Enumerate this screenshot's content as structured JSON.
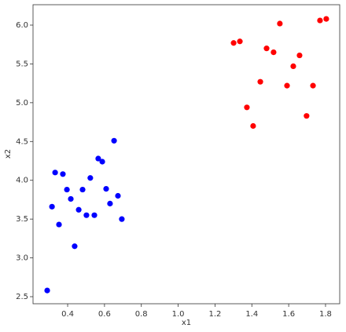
{
  "chart_data": {
    "type": "scatter",
    "x_label": "x1",
    "y_label": "x2",
    "series": [
      {
        "color": "#0000ff",
        "x": [
          0.289,
          0.315,
          0.332,
          0.353,
          0.374,
          0.396,
          0.417,
          0.438,
          0.46,
          0.481,
          0.502,
          0.523,
          0.545,
          0.566,
          0.588,
          0.609,
          0.63,
          0.652,
          0.673,
          0.694
        ],
        "values": [
          2.58,
          3.66,
          4.1,
          3.43,
          4.08,
          3.88,
          3.76,
          3.15,
          3.62,
          3.88,
          3.55,
          4.03,
          3.55,
          4.28,
          4.24,
          3.89,
          3.7,
          4.51,
          3.8,
          3.5
        ]
      },
      {
        "color": "#ff0000",
        "x": [
          1.301,
          1.335,
          1.373,
          1.407,
          1.446,
          1.48,
          1.518,
          1.552,
          1.591,
          1.625,
          1.659,
          1.697,
          1.732,
          1.77,
          1.804
        ],
        "values": [
          5.77,
          5.79,
          4.94,
          4.7,
          5.27,
          5.7,
          5.65,
          6.02,
          5.22,
          5.47,
          5.61,
          4.83,
          5.22,
          6.06,
          6.08
        ]
      }
    ],
    "xlim": [
      0.212,
      1.877
    ],
    "ylim": [
      2.409,
      6.263
    ],
    "xticks": [
      0.4,
      0.6,
      0.8,
      {
        "value": 1,
        "label": "1.0"
      },
      1.2,
      1.4,
      1.6,
      1.8
    ],
    "yticks": [
      2.5,
      {
        "value": 3,
        "label": "3.0"
      },
      3.5,
      {
        "value": 4,
        "label": "4.0"
      },
      4.5,
      {
        "value": 5,
        "label": "5.0"
      },
      5.5,
      {
        "value": 6,
        "label": "6.0"
      }
    ],
    "grid": false
  }
}
